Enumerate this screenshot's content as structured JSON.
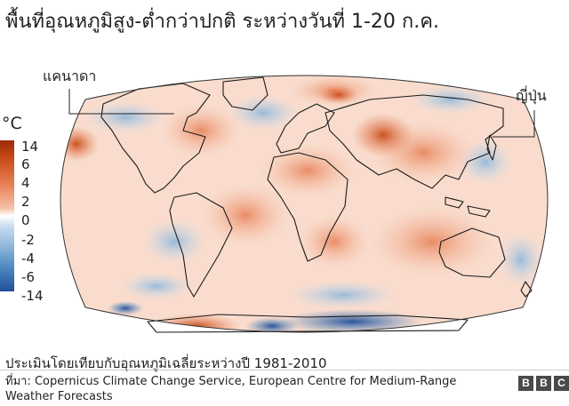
{
  "title": "พื้นที่อุณหภูมิสูง-ต่ำกว่าปกติ ระหว่างวันที่ 1-20 ก.ค.",
  "legend": {
    "unit": "°C",
    "ticks": [
      "14",
      "6",
      "4",
      "2",
      "0",
      "-2",
      "-4",
      "-6",
      "-14"
    ],
    "colors": {
      "max": "#9b2a05",
      "warm": "#e8835a",
      "neutral": "#ffffff",
      "cool": "#8fb7da",
      "min": "#1f4f9a"
    }
  },
  "map": {
    "projection": "Robinson world map",
    "labels": {
      "canada": "แคนาดา",
      "japan": "ญี่ปุ่น"
    }
  },
  "baseline_note": "ประเมินโดยเทียบกับอุณหภูมิเฉลี่ยระหว่างปี 1981-2010",
  "source": "ที่มา: Copernicus Climate Change Service, European Centre for Medium-Range Weather Forecasts",
  "branding": {
    "letters": [
      "B",
      "B",
      "C"
    ]
  }
}
